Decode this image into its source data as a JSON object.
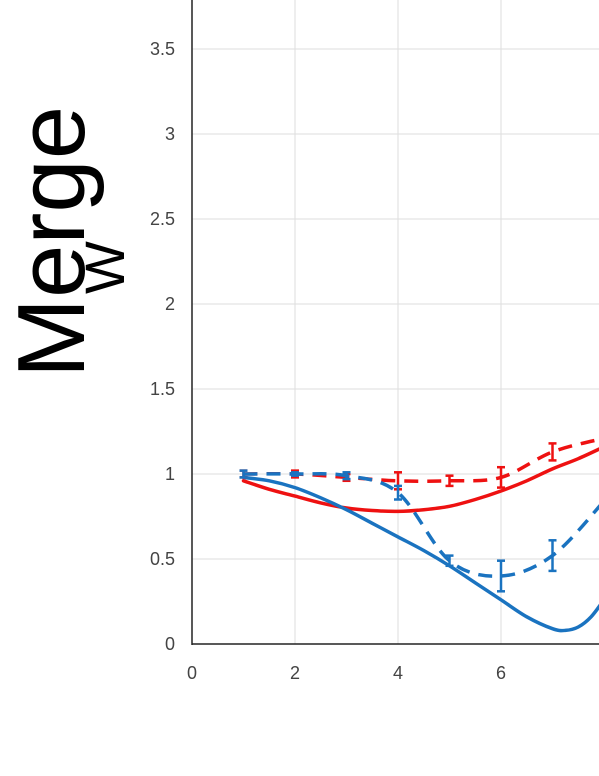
{
  "chart_data": {
    "type": "line",
    "ylabel": "Merge",
    "ylabel_subscript": "W",
    "xlabel": "",
    "title": "",
    "xlim": [
      0,
      8
    ],
    "ylim": [
      0,
      3.8
    ],
    "x_ticks": [
      "0",
      "2",
      "4",
      "6"
    ],
    "x_tick_values": [
      0,
      2,
      4,
      6
    ],
    "y_ticks": [
      "0",
      "0.5",
      "1",
      "1.5",
      "2",
      "2.5",
      "3",
      "3.5"
    ],
    "y_tick_values": [
      0,
      0.5,
      1,
      1.5,
      2,
      2.5,
      3,
      3.5
    ],
    "grid": true,
    "colors": {
      "red": "#ee1111",
      "blue": "#1a73c0",
      "grid": "#dddddd",
      "axis": "#222222"
    },
    "series": [
      {
        "style": "solid",
        "color": "#ee1111",
        "x": [
          1,
          1.5,
          2,
          2.5,
          3,
          3.5,
          4,
          4.5,
          5,
          5.5,
          6,
          6.5,
          7,
          7.5,
          8
        ],
        "y": [
          0.96,
          0.91,
          0.87,
          0.83,
          0.8,
          0.785,
          0.78,
          0.79,
          0.81,
          0.85,
          0.9,
          0.96,
          1.03,
          1.09,
          1.16
        ]
      },
      {
        "style": "solid",
        "color": "#1a73c0",
        "x": [
          1,
          1.5,
          2,
          2.5,
          3,
          3.5,
          4,
          4.5,
          5,
          5.5,
          6,
          6.5,
          7,
          7.25,
          7.5,
          7.75,
          8
        ],
        "y": [
          0.98,
          0.96,
          0.92,
          0.86,
          0.79,
          0.71,
          0.63,
          0.55,
          0.46,
          0.36,
          0.26,
          0.16,
          0.09,
          0.08,
          0.1,
          0.16,
          0.26
        ]
      },
      {
        "style": "dashed",
        "color": "#ee1111",
        "x": [
          1,
          2,
          3,
          4,
          5,
          6,
          7,
          8
        ],
        "y": [
          1.0,
          1.0,
          0.98,
          0.96,
          0.96,
          0.98,
          1.13,
          1.21
        ],
        "err": [
          0.02,
          0.02,
          0.02,
          0.05,
          0.03,
          0.06,
          0.05,
          0.04
        ]
      },
      {
        "style": "dashed",
        "color": "#1a73c0",
        "x": [
          1,
          2,
          3,
          4,
          5,
          6,
          7,
          8
        ],
        "y": [
          1.0,
          1.0,
          0.99,
          0.89,
          0.49,
          0.4,
          0.52,
          0.84
        ],
        "err": [
          0.02,
          0.01,
          0.02,
          0.04,
          0.03,
          0.09,
          0.09,
          0.05
        ]
      }
    ]
  }
}
